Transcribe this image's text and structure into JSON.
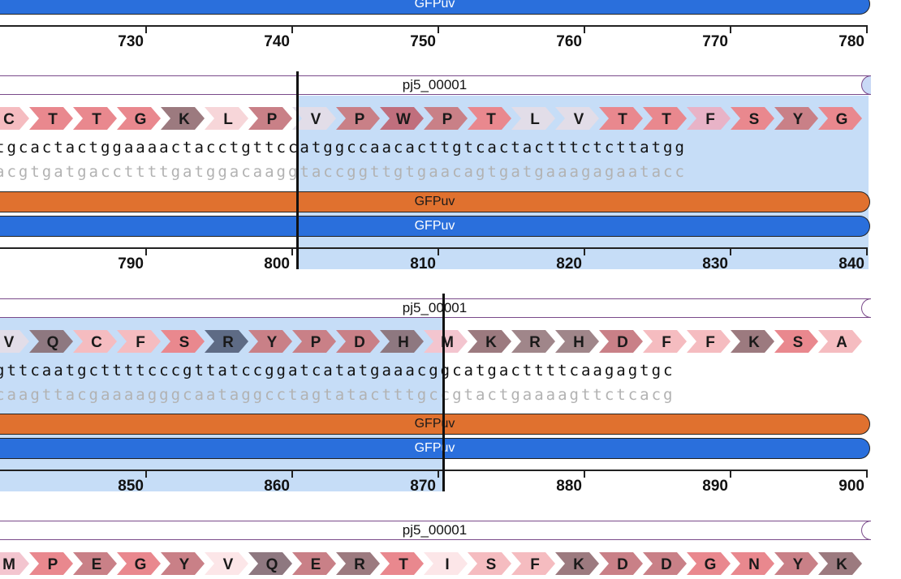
{
  "feature_label": "GFPuv",
  "primer_label": "pj5_00001",
  "rows": [
    {
      "ticks": [
        "730",
        "740",
        "750",
        "760",
        "770",
        "780"
      ]
    },
    {
      "aa": [
        "C",
        "T",
        "T",
        "G",
        "K",
        "L",
        "P",
        "V",
        "P",
        "W",
        "P",
        "T",
        "L",
        "V",
        "T",
        "T",
        "F",
        "S",
        "Y",
        "G"
      ],
      "aa_colors": [
        "#f5bcc0",
        "#e9888e",
        "#e9888e",
        "#e9888e",
        "#9c7a7f",
        "#f7d6d9",
        "#c98087",
        "#e2dde8",
        "#c98087",
        "#c06f7d",
        "#c98087",
        "#e9888e",
        "#e2dde8",
        "#e2dde8",
        "#e9888e",
        "#e9888e",
        "#e8b3c7",
        "#e9888e",
        "#c98087",
        "#e9888e"
      ],
      "top": "tgcactactggaaaactacctgttccatggccaacacttgtcactactttctcttatgg",
      "bot": "acgtgatgaccttttgatggacaaggtaccggttgtgaacagtgatgaaagagaatacc",
      "ticks": [
        "790",
        "800",
        "810",
        "820",
        "830",
        "840"
      ]
    },
    {
      "aa": [
        "V",
        "Q",
        "C",
        "F",
        "S",
        "R",
        "Y",
        "P",
        "D",
        "H",
        "M",
        "K",
        "R",
        "H",
        "D",
        "F",
        "F",
        "K",
        "S",
        "A"
      ],
      "aa_colors": [
        "#e2dde8",
        "#8e7880",
        "#f5bcc0",
        "#f5bcc0",
        "#e9888e",
        "#5e6b85",
        "#c98087",
        "#c98087",
        "#c98087",
        "#8e7880",
        "#f3c5cf",
        "#9c7a7f",
        "#a0868a",
        "#a0868a",
        "#c98087",
        "#f5bcc0",
        "#f5bcc0",
        "#9c7a7f",
        "#e9888e",
        "#f5bcc0"
      ],
      "top": "gttcaatgcttttcccgttatccggatcatatgaaacggcatgacttttcaagagtgc",
      "bot": "caagttacgaaaagggcaataggcctagtatactttgccgtactgaaaagttctcacg",
      "ticks": [
        "850",
        "860",
        "870",
        "880",
        "890",
        "900"
      ]
    },
    {
      "aa": [
        "M",
        "P",
        "E",
        "G",
        "Y",
        "V",
        "Q",
        "E",
        "R",
        "T",
        "I",
        "S",
        "F",
        "K",
        "D",
        "D",
        "G",
        "N",
        "Y",
        "K"
      ],
      "aa_colors": [
        "#f3c5cf",
        "#e9888e",
        "#c98087",
        "#e9888e",
        "#c98087",
        "#fce6e8",
        "#8e7880",
        "#c98087",
        "#9c7a7f",
        "#e9888e",
        "#fce6e8",
        "#f5bcc0",
        "#f5bcc0",
        "#9c7a7f",
        "#c98087",
        "#c98087",
        "#e9888e",
        "#e9888e",
        "#c98087",
        "#9c7a7f"
      ]
    }
  ]
}
